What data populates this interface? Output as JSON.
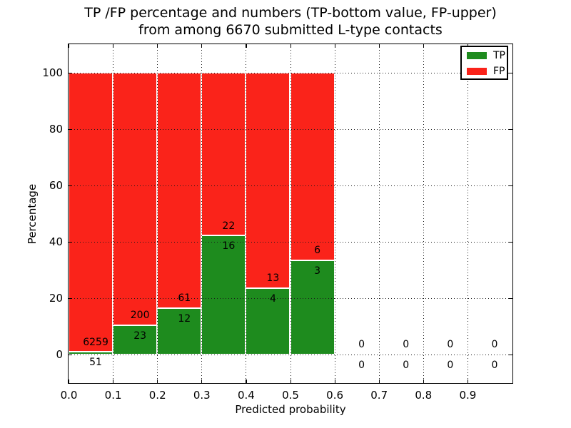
{
  "title": {
    "line1": "TP /FP percentage and numbers (TP-bottom value, FP-upper)",
    "line2": "from among 6670 submitted L-type contacts"
  },
  "axes": {
    "xlabel": "Predicted probability",
    "ylabel": "Percentage"
  },
  "legend": {
    "position": "upper right",
    "items": [
      {
        "label": "TP",
        "color": "#1e8b1e"
      },
      {
        "label": "FP",
        "color": "#fa231a"
      }
    ]
  },
  "chart_data": {
    "type": "bar",
    "subtype": "stacked-percentage-histogram",
    "title": "TP /FP percentage and numbers (TP-bottom value, FP-upper) from among 6670 submitted L-type contacts",
    "total_contacts": 6670,
    "xlabel": "Predicted probability",
    "ylabel": "Percentage",
    "xlim": [
      0.0,
      1.0
    ],
    "ylim": [
      -10,
      110
    ],
    "grid": "dotted",
    "legend_position": "upper right",
    "colors": {
      "tp": "#1e8b1e",
      "fp": "#fa231a",
      "bar_edge": "#ffffff"
    },
    "series": [
      {
        "name": "TP",
        "color": "#1e8b1e"
      },
      {
        "name": "FP",
        "color": "#fa231a"
      }
    ],
    "x_ticks": [
      {
        "value": 0.0,
        "label": "0.0"
      },
      {
        "value": 0.1,
        "label": "0.1"
      },
      {
        "value": 0.2,
        "label": "0.2"
      },
      {
        "value": 0.3,
        "label": "0.3"
      },
      {
        "value": 0.4,
        "label": "0.4"
      },
      {
        "value": 0.5,
        "label": "0.5"
      },
      {
        "value": 0.6,
        "label": "0.6"
      },
      {
        "value": 0.7,
        "label": "0.7"
      },
      {
        "value": 0.8,
        "label": "0.8"
      },
      {
        "value": 0.9,
        "label": "0.9"
      }
    ],
    "y_ticks": [
      {
        "value": 0,
        "label": "0"
      },
      {
        "value": 20,
        "label": "20"
      },
      {
        "value": 40,
        "label": "40"
      },
      {
        "value": 60,
        "label": "60"
      },
      {
        "value": 80,
        "label": "80"
      },
      {
        "value": 100,
        "label": "100"
      }
    ],
    "bins": [
      {
        "range": [
          0.0,
          0.1
        ],
        "tp": 51,
        "fp": 6259,
        "tp_pct": 0.8,
        "fp_pct": 99.2
      },
      {
        "range": [
          0.1,
          0.2
        ],
        "tp": 23,
        "fp": 200,
        "tp_pct": 10.3,
        "fp_pct": 89.7
      },
      {
        "range": [
          0.2,
          0.3
        ],
        "tp": 12,
        "fp": 61,
        "tp_pct": 16.4,
        "fp_pct": 83.6
      },
      {
        "range": [
          0.3,
          0.4
        ],
        "tp": 16,
        "fp": 22,
        "tp_pct": 42.1,
        "fp_pct": 57.9
      },
      {
        "range": [
          0.4,
          0.5
        ],
        "tp": 4,
        "fp": 13,
        "tp_pct": 23.5,
        "fp_pct": 76.5
      },
      {
        "range": [
          0.5,
          0.6
        ],
        "tp": 3,
        "fp": 6,
        "tp_pct": 33.3,
        "fp_pct": 66.7
      },
      {
        "range": [
          0.6,
          0.7
        ],
        "tp": 0,
        "fp": 0,
        "tp_pct": 0,
        "fp_pct": 0
      },
      {
        "range": [
          0.7,
          0.8
        ],
        "tp": 0,
        "fp": 0,
        "tp_pct": 0,
        "fp_pct": 0
      },
      {
        "range": [
          0.8,
          0.9
        ],
        "tp": 0,
        "fp": 0,
        "tp_pct": 0,
        "fp_pct": 0
      },
      {
        "range": [
          0.9,
          1.0
        ],
        "tp": 0,
        "fp": 0,
        "tp_pct": 0,
        "fp_pct": 0
      }
    ]
  }
}
